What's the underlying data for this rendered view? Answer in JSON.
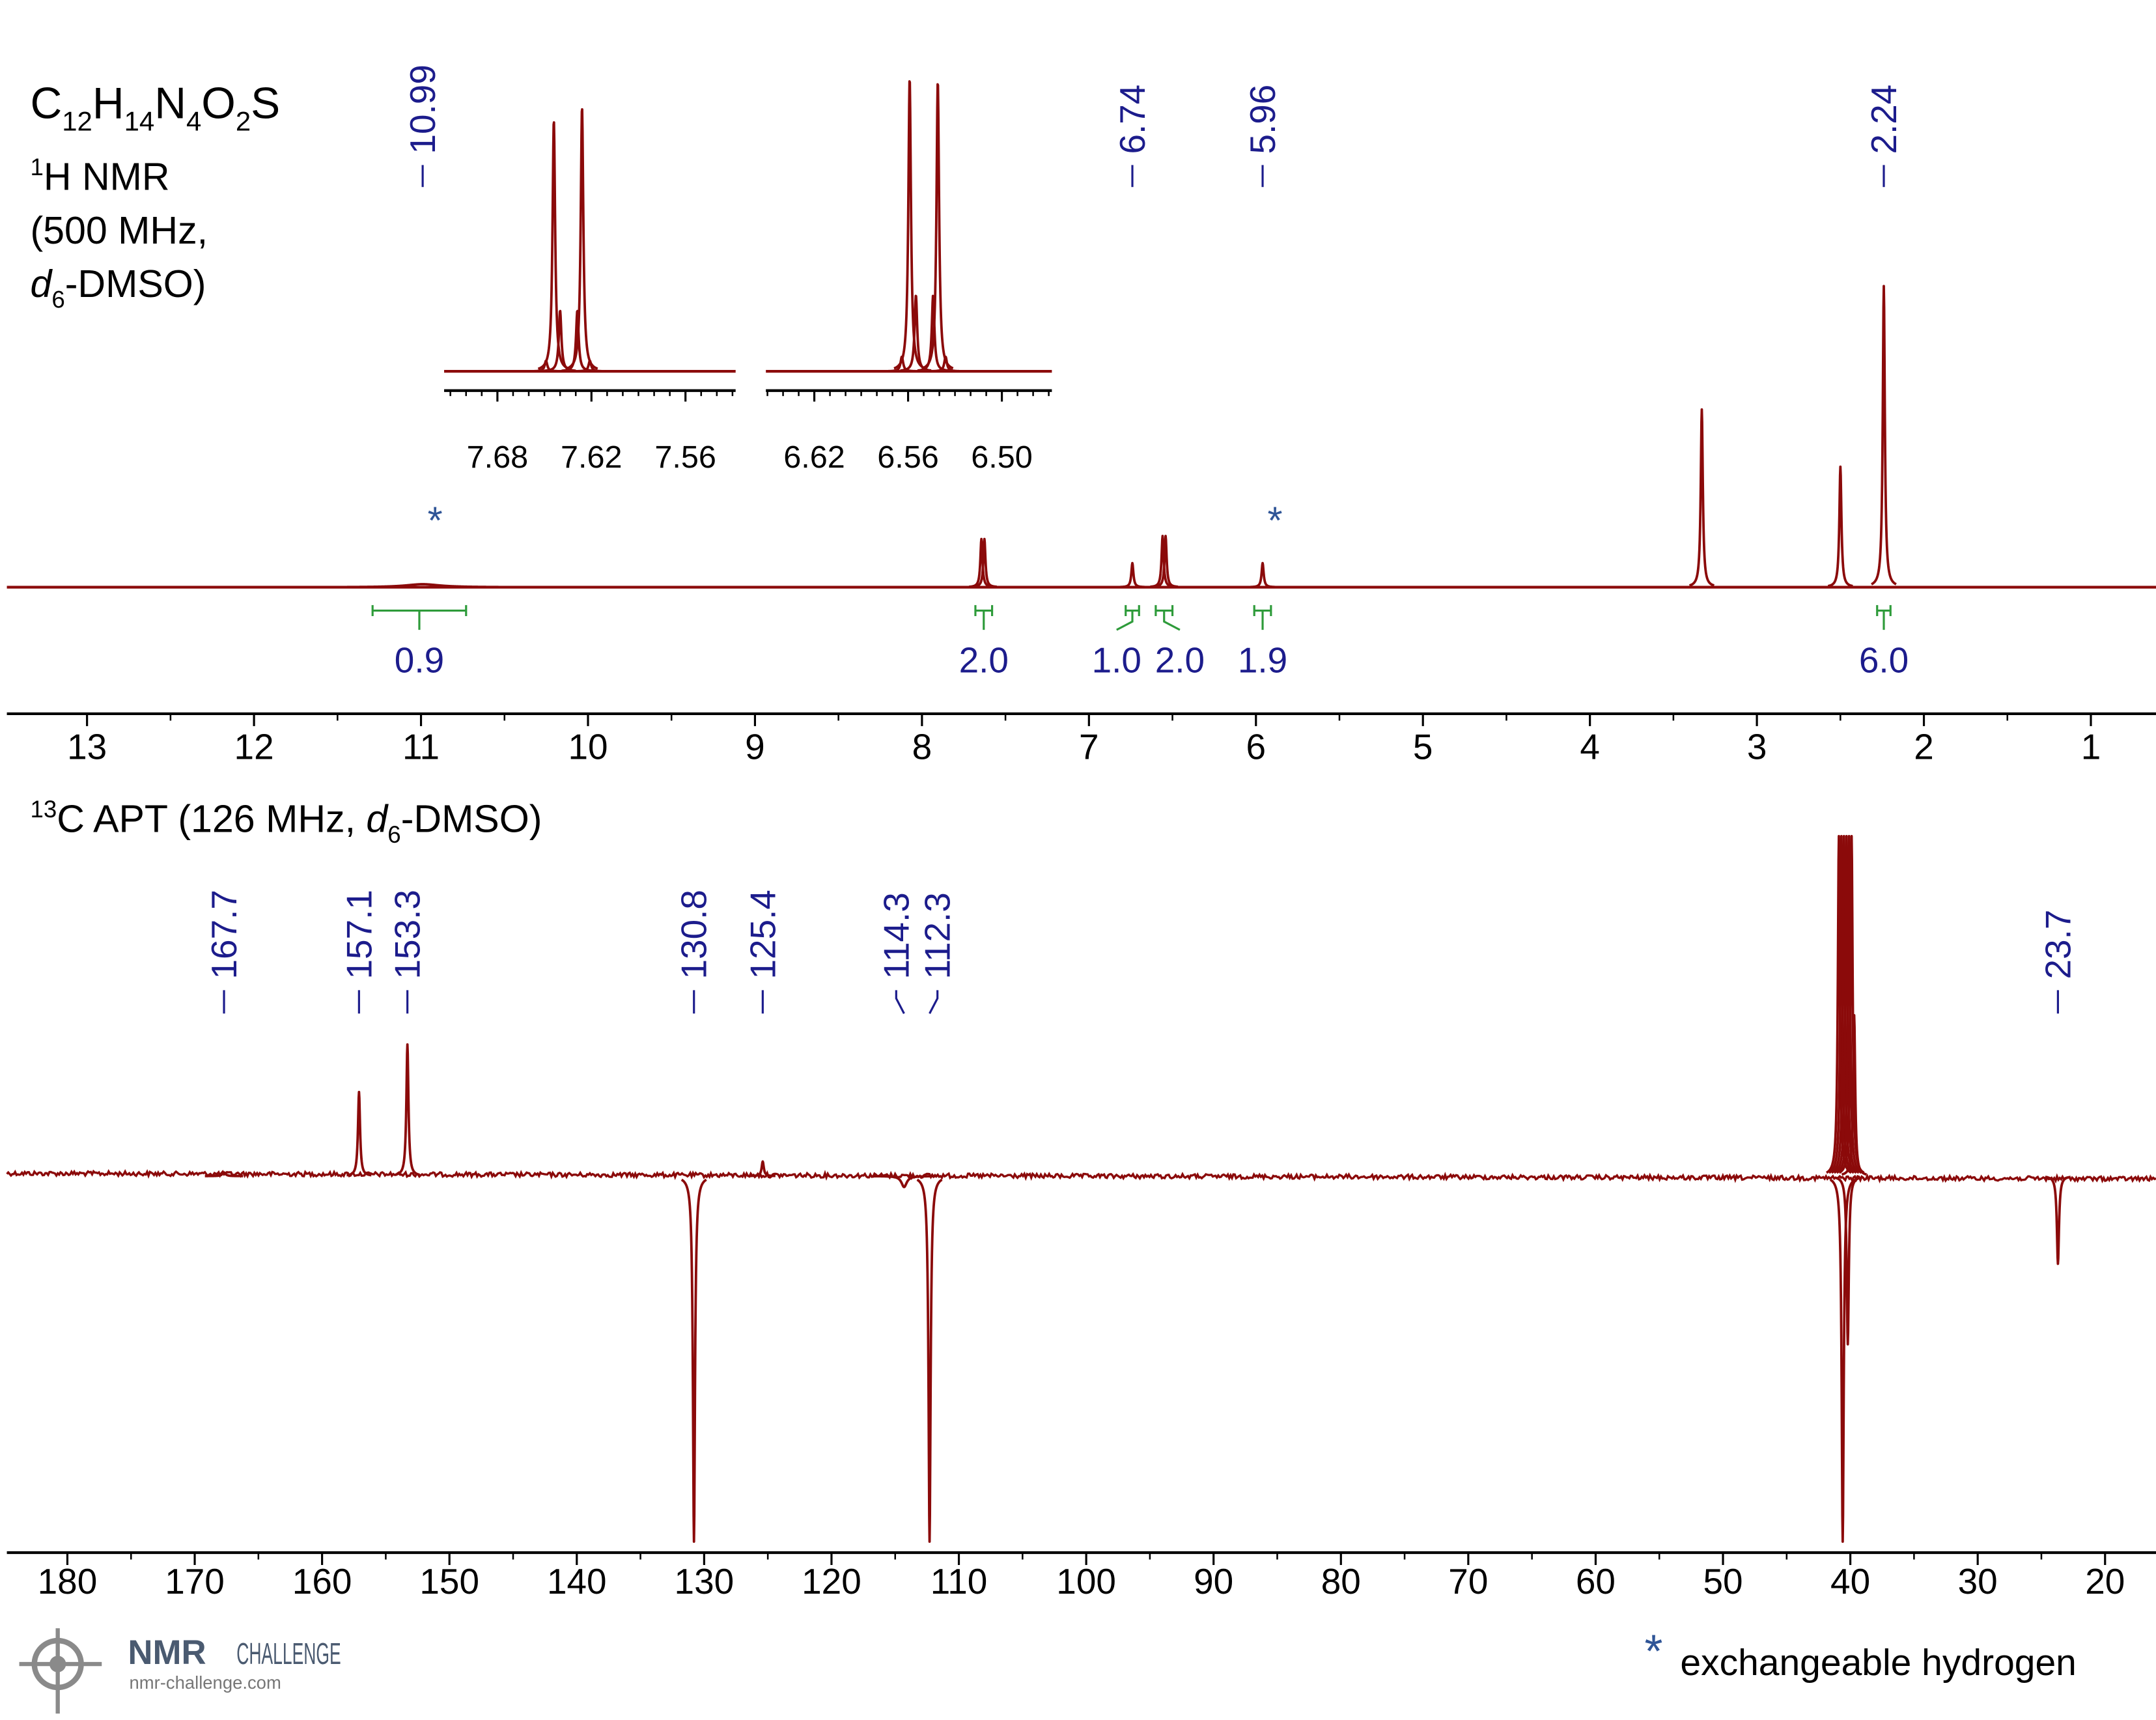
{
  "header": {
    "formula": [
      {
        "text": "C"
      },
      {
        "text": "12",
        "style": "sub"
      },
      {
        "text": "H"
      },
      {
        "text": "14",
        "style": "sub"
      },
      {
        "text": "N"
      },
      {
        "text": "4",
        "style": "sub"
      },
      {
        "text": "O"
      },
      {
        "text": "2",
        "style": "sub"
      },
      {
        "text": "S"
      }
    ],
    "proton_lines": [
      [
        {
          "text": "1",
          "style": "sup"
        },
        {
          "text": "H NMR"
        }
      ],
      [
        {
          "text": "(500 MHz,"
        }
      ],
      [
        {
          "text": "d",
          "style": "italic"
        },
        {
          "text": "6",
          "style": "sub"
        },
        {
          "text": "-DMSO)"
        }
      ]
    ],
    "carbon_line": [
      {
        "text": "13",
        "style": "sup"
      },
      {
        "text": "C APT (126 MHz, "
      },
      {
        "text": "d",
        "style": "italic"
      },
      {
        "text": "6",
        "style": "sub"
      },
      {
        "text": "-DMSO)"
      }
    ]
  },
  "footnote": {
    "symbol": "*",
    "text": "exchangeable hydrogen"
  },
  "logo": {
    "name": "NMR",
    "suffix": "CHALLENGE",
    "url": "nmr-challenge.com"
  },
  "chart_data": [
    {
      "type": "spectrum",
      "color": "#8b0a0a",
      "xlim": [
        13.48,
        0.61
      ],
      "xticks": [
        13,
        12,
        11,
        10,
        9,
        8,
        7,
        6,
        5,
        4,
        3,
        2,
        1
      ],
      "xminor": 0.5,
      "ylim": [
        0,
        100
      ],
      "peaks": [
        {
          "x": 10.99,
          "height": 1,
          "width": 0.25
        },
        {
          "x": 7.644,
          "height": 16,
          "width": 0.008
        },
        {
          "x": 7.626,
          "height": 16,
          "width": 0.008
        },
        {
          "x": 6.74,
          "height": 8,
          "width": 0.008
        },
        {
          "x": 6.559,
          "height": 17,
          "width": 0.008
        },
        {
          "x": 6.541,
          "height": 17,
          "width": 0.008
        },
        {
          "x": 5.96,
          "height": 8,
          "width": 0.012
        },
        {
          "x": 3.33,
          "height": 59,
          "width": 0.008
        },
        {
          "x": 2.5,
          "height": 40,
          "width": 0.008
        },
        {
          "x": 2.24,
          "height": 100,
          "width": 0.008
        }
      ],
      "peak_labels": [
        10.99,
        6.74,
        5.96,
        2.24
      ],
      "exchangeable": [
        10.99,
        5.96
      ],
      "integrals": [
        {
          "from": 11.29,
          "to": 10.73,
          "value": 0.9,
          "label": "0.9"
        },
        {
          "from": 7.68,
          "to": 7.58,
          "value": 2,
          "label": "2.0"
        },
        {
          "from": 6.78,
          "to": 6.7,
          "value": 1,
          "label": "1.0"
        },
        {
          "from": 6.6,
          "to": 6.5,
          "value": 2,
          "label": "2.0"
        },
        {
          "from": 6.01,
          "to": 5.91,
          "value": 1.9,
          "label": "1.9"
        },
        {
          "from": 2.28,
          "to": 2.2,
          "value": 6,
          "label": "6.0"
        }
      ],
      "insets": [
        {
          "xlim": [
            7.714,
            7.528
          ],
          "xticks": [
            7.68,
            7.62,
            7.56
          ],
          "xminor": 0.01,
          "ylim": [
            0,
            100
          ],
          "peaks": [
            {
              "x": 7.649,
              "height": 4,
              "width": 0.002
            },
            {
              "x": 7.644,
              "height": 95,
              "width": 0.002
            },
            {
              "x": 7.64,
              "height": 23,
              "width": 0.002
            },
            {
              "x": 7.629,
              "height": 23,
              "width": 0.002
            },
            {
              "x": 7.626,
              "height": 100,
              "width": 0.002
            },
            {
              "x": 7.621,
              "height": 4,
              "width": 0.002
            }
          ]
        },
        {
          "xlim": [
            6.651,
            6.468
          ],
          "xticks": [
            6.62,
            6.56,
            {
              "value": 6.5,
              "label": "6.50"
            }
          ],
          "xminor": 0.01,
          "ylim": [
            0,
            100
          ],
          "peaks": [
            {
              "x": 6.564,
              "height": 5,
              "width": 0.002
            },
            {
              "x": 6.559,
              "height": 100,
              "width": 0.002
            },
            {
              "x": 6.555,
              "height": 26,
              "width": 0.002
            },
            {
              "x": 6.544,
              "height": 26,
              "width": 0.002
            },
            {
              "x": 6.541,
              "height": 99,
              "width": 0.002
            },
            {
              "x": 6.536,
              "height": 5,
              "width": 0.002
            }
          ]
        }
      ]
    },
    {
      "type": "spectrum",
      "color": "#8b0a0a",
      "noise": true,
      "xlim": [
        184.75,
        16.0
      ],
      "xticks": [
        180,
        170,
        160,
        150,
        140,
        130,
        120,
        110,
        100,
        90,
        80,
        70,
        60,
        50,
        40,
        30,
        20
      ],
      "xminor": 5,
      "ylim": [
        -100,
        93
      ],
      "peaks": [
        {
          "x": 167.7,
          "height": 1,
          "width": 0.3
        },
        {
          "x": 157.1,
          "height": 23,
          "width": 0.15
        },
        {
          "x": 153.3,
          "height": 36,
          "width": 0.15
        },
        {
          "x": 130.8,
          "height": -100,
          "width": 0.15
        },
        {
          "x": 125.4,
          "height": 4,
          "width": 0.2
        },
        {
          "x": 114.3,
          "height": -3,
          "width": 0.5
        },
        {
          "x": 112.3,
          "height": -100,
          "width": 0.15
        },
        {
          "x": 40.9,
          "height": 93,
          "width": 0.1
        },
        {
          "x": 40.7,
          "height": 93,
          "width": 0.1
        },
        {
          "x": 40.6,
          "height": -100,
          "width": 0.1
        },
        {
          "x": 40.5,
          "height": 93,
          "width": 0.1
        },
        {
          "x": 40.3,
          "height": 93,
          "width": 0.1
        },
        {
          "x": 40.2,
          "height": -46,
          "width": 0.1
        },
        {
          "x": 40.1,
          "height": 93,
          "width": 0.1
        },
        {
          "x": 39.9,
          "height": 93,
          "width": 0.1
        },
        {
          "x": 39.7,
          "height": 44,
          "width": 0.15
        },
        {
          "x": 23.7,
          "height": -24,
          "width": 0.2
        }
      ],
      "peak_labels": [
        167.7,
        157.1,
        153.3,
        130.8,
        125.4,
        114.3,
        112.3,
        23.7
      ]
    }
  ]
}
